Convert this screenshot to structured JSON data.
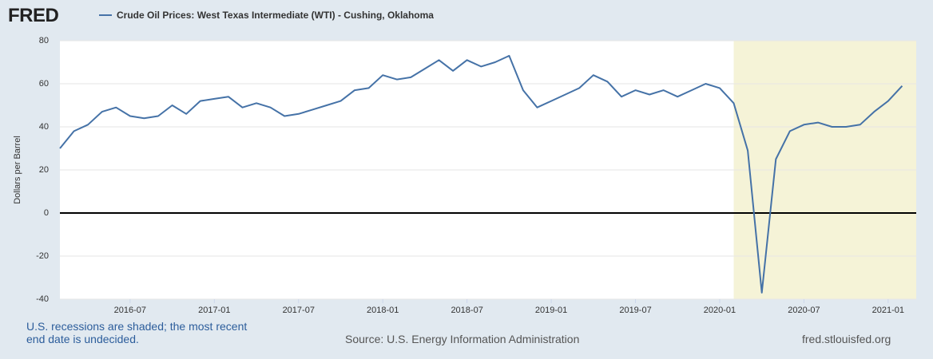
{
  "chart_data": {
    "type": "line",
    "brand": "FRED",
    "title": "Crude Oil Prices: West Texas Intermediate (WTI) - Cushing, Oklahoma",
    "ylabel": "Dollars per Barrel",
    "note": "U.S. recessions are shaded; the most recent end date is undecided.",
    "source": "Source: U.S. Energy Information Administration",
    "site": "fred.stlouisfed.org",
    "recession_start": "2020-02",
    "recession_color": "#f5f3d7",
    "grid": true,
    "x": [
      "2016-02",
      "2016-03",
      "2016-04",
      "2016-05",
      "2016-06",
      "2016-07",
      "2016-08",
      "2016-09",
      "2016-10",
      "2016-11",
      "2016-12",
      "2017-01",
      "2017-02",
      "2017-03",
      "2017-04",
      "2017-05",
      "2017-06",
      "2017-07",
      "2017-08",
      "2017-09",
      "2017-10",
      "2017-11",
      "2017-12",
      "2018-01",
      "2018-02",
      "2018-03",
      "2018-04",
      "2018-05",
      "2018-06",
      "2018-07",
      "2018-08",
      "2018-09",
      "2018-10",
      "2018-11",
      "2018-12",
      "2019-01",
      "2019-02",
      "2019-03",
      "2019-04",
      "2019-05",
      "2019-06",
      "2019-07",
      "2019-08",
      "2019-09",
      "2019-10",
      "2019-11",
      "2019-12",
      "2020-01",
      "2020-02",
      "2020-03",
      "2020-04",
      "2020-05",
      "2020-06",
      "2020-07",
      "2020-08",
      "2020-09",
      "2020-10",
      "2020-11",
      "2020-12",
      "2021-01",
      "2021-02"
    ],
    "series": [
      {
        "name": "Crude Oil Prices: West Texas Intermediate (WTI) - Cushing, Oklahoma",
        "color": "#4572a7",
        "values": [
          30,
          38,
          41,
          47,
          49,
          45,
          44,
          45,
          50,
          46,
          52,
          53,
          54,
          49,
          51,
          49,
          45,
          46,
          48,
          50,
          52,
          57,
          58,
          64,
          62,
          63,
          67,
          71,
          66,
          71,
          68,
          70,
          73,
          57,
          49,
          52,
          55,
          58,
          64,
          61,
          54,
          57,
          55,
          57,
          54,
          57,
          60,
          58,
          51,
          29,
          -37,
          25,
          38,
          41,
          42,
          40,
          40,
          41,
          47,
          52,
          59
        ]
      }
    ],
    "xlim": [
      "2016-02",
      "2021-03"
    ],
    "xticks": [
      "2016-07",
      "2017-01",
      "2017-07",
      "2018-01",
      "2018-07",
      "2019-01",
      "2019-07",
      "2020-01",
      "2020-07",
      "2021-01"
    ],
    "ylim": [
      -40,
      80
    ],
    "yticks": [
      -40,
      -20,
      0,
      20,
      40,
      60,
      80
    ]
  }
}
